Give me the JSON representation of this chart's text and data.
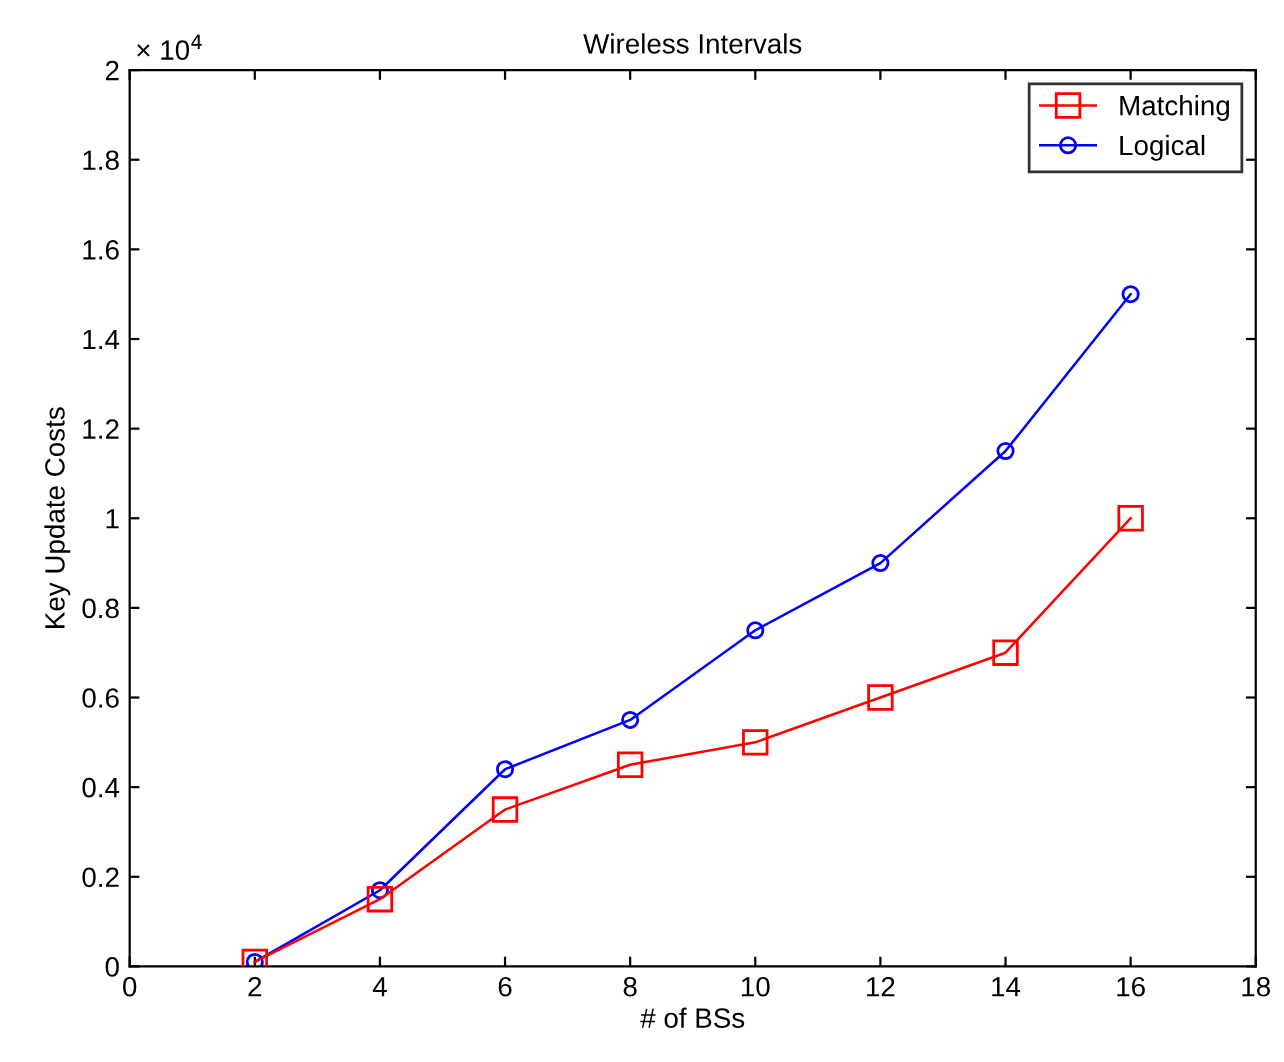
{
  "chart_data": {
    "type": "line",
    "title": "Wireless Intervals",
    "xlabel": "# of BSs",
    "ylabel": "Key Update Costs",
    "annotations": [
      "× 10$^{4}$"
    ],
    "x": [
      2,
      4,
      6,
      8,
      10,
      12,
      14,
      16
    ],
    "series": [
      {
        "name": "Matching",
        "color": "#ff0000",
        "marker": "square",
        "values": [
          0.01,
          0.15,
          0.35,
          0.45,
          0.5,
          0.6,
          0.7,
          1.0
        ]
      },
      {
        "name": "Logical",
        "color": "#0000ff",
        "marker": "circle",
        "values": [
          0.01,
          0.17,
          0.44,
          0.55,
          0.75,
          0.9,
          1.15,
          1.5
        ]
      }
    ],
    "xlim": [
      0,
      18
    ],
    "xticks": [
      0,
      2,
      4,
      6,
      8,
      10,
      12,
      14,
      16,
      18
    ],
    "ylim": [
      0,
      2
    ],
    "yticks": [
      0,
      0.2,
      0.4,
      0.6,
      0.8,
      1,
      1.2,
      1.4,
      1.6,
      1.8,
      2
    ],
    "legend": "top right",
    "line_style": "solid"
  }
}
